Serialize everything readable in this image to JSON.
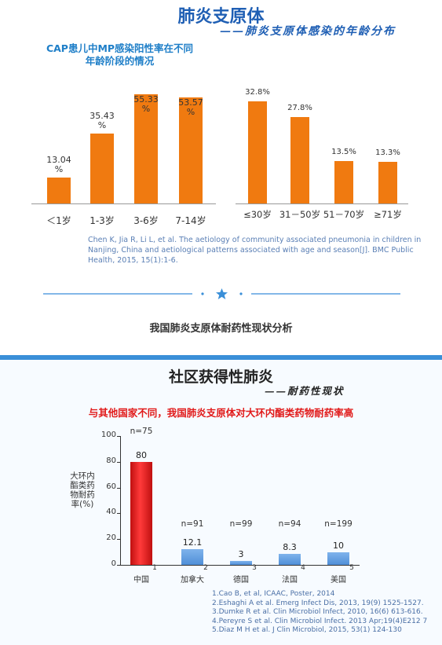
{
  "top_slide": {
    "title": "肺炎支原体",
    "subtitle": "——肺炎支原体感染的年龄分布",
    "left_chart_title_line1": "CAP患儿中MP感染阳性率在不同",
    "left_chart_title_line2": "年龄阶段的情况",
    "citation": "Chen K, Jia R, Li L, et al. The aetiology of community associated pneumonia in children in Nanjing, China and aetiological patterns associated with age and season[J]. BMC Public Health, 2015, 15(1):1-6."
  },
  "caption": "我国肺炎支原体耐药性现状分析",
  "bottom_slide": {
    "title": "社区获得性肺炎",
    "subtitle": "——耐药性现状",
    "headline": "与其他国家不同，我国肺炎支原体对大环内酯类药物耐药率高",
    "references": [
      "1.Cao B, et al, ICAAC, Poster, 2014",
      "2.Eshaghi A et al. Emerg Infect Dis, 2013, 19(9) 1525-1527.",
      "3.Dumke R et al. Clin Microbiol Infect, 2010, 16(6) 613-616.",
      "4.Pereyre S et al. Clin Microbiol Infect. 2013 Apr;19(4)E212 7",
      "5.Diaz M H et al. J Clin Microbiol, 2015, 53(1) 124-130"
    ]
  },
  "colors": {
    "orange_bar": "#f07a10",
    "red_bar": "#e02020",
    "blue_bar": "#4f8fd8",
    "title_blue": "#1f5fb4"
  },
  "chart_data": [
    {
      "type": "bar",
      "title": "CAP患儿中MP感染阳性率在不同年龄阶段的情况",
      "categories": [
        "＜1岁",
        "1-3岁",
        "3-6岁",
        "7-14岁"
      ],
      "values": [
        13.04,
        35.43,
        55.33,
        53.57
      ],
      "value_labels": [
        "13.04",
        "35.43",
        "55.33",
        "53.57"
      ],
      "unit": "%",
      "ylim": [
        0,
        60
      ]
    },
    {
      "type": "bar",
      "title": "",
      "categories": [
        "≤30岁",
        "31－50岁",
        "51－70岁",
        "≥71岁"
      ],
      "values": [
        32.8,
        27.8,
        13.5,
        13.3
      ],
      "value_labels": [
        "32.8%",
        "27.8%",
        "13.5%",
        "13.3%"
      ],
      "ylim": [
        0,
        36
      ]
    },
    {
      "type": "bar",
      "title": "",
      "ylabel": "大环内酯类药物耐药率(%)",
      "categories": [
        "中国",
        "加拿大",
        "德国",
        "法国",
        "美国"
      ],
      "ref_numbers": [
        "1",
        "2",
        "3",
        "4",
        "5"
      ],
      "values": [
        80,
        12.1,
        3,
        8.3,
        10
      ],
      "value_labels": [
        "80",
        "12.1",
        "3",
        "8.3",
        "10"
      ],
      "n_labels": [
        "n=75",
        "n=91",
        "n=99",
        "n=94",
        "n=199"
      ],
      "yticks": [
        "0",
        "20",
        "40",
        "60",
        "80",
        "100"
      ],
      "ylim": [
        0,
        100
      ]
    }
  ]
}
